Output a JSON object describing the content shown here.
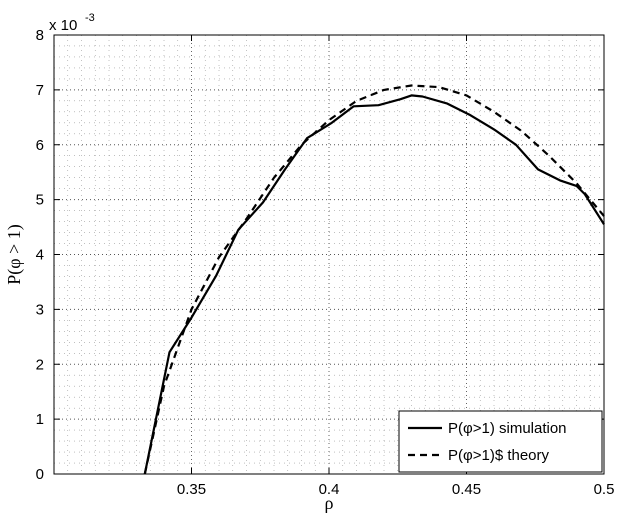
{
  "chart_data": {
    "type": "line",
    "title": "",
    "xlabel": "ρ",
    "ylabel": "P(φ > 1)",
    "y_exponent_label": "x 10",
    "y_exponent_power": "-3",
    "xlim": [
      0.3,
      0.5
    ],
    "ylim": [
      0,
      8
    ],
    "x_ticks": [
      0.35,
      0.4,
      0.45,
      0.5
    ],
    "x_tick_labels": [
      "0.35",
      "0.4",
      "0.45",
      "0.5"
    ],
    "y_ticks": [
      0,
      1,
      2,
      3,
      4,
      5,
      6,
      7,
      8
    ],
    "y_tick_labels": [
      "0",
      "1",
      "2",
      "3",
      "4",
      "5",
      "6",
      "7",
      "8"
    ],
    "grid": "dotted major and minor",
    "legend_position": "bottom-right",
    "series": [
      {
        "name": "P(φ>1) simulation",
        "style": "solid",
        "x": [
          0.333,
          0.342,
          0.35,
          0.359,
          0.367,
          0.376,
          0.384,
          0.392,
          0.401,
          0.409,
          0.418,
          0.426,
          0.43,
          0.434,
          0.443,
          0.451,
          0.46,
          0.468,
          0.476,
          0.484,
          0.49,
          0.493,
          0.5
        ],
        "y": [
          0.0,
          2.22,
          2.85,
          3.62,
          4.45,
          4.95,
          5.55,
          6.12,
          6.4,
          6.7,
          6.72,
          6.83,
          6.9,
          6.88,
          6.75,
          6.55,
          6.28,
          6.0,
          5.55,
          5.35,
          5.25,
          5.1,
          4.55
        ]
      },
      {
        "name": "P(φ>1)$ theory",
        "style": "dashed",
        "x": [
          0.333,
          0.34,
          0.35,
          0.36,
          0.37,
          0.38,
          0.39,
          0.4,
          0.41,
          0.42,
          0.43,
          0.44,
          0.45,
          0.46,
          0.47,
          0.48,
          0.49,
          0.5
        ],
        "y": [
          0.0,
          1.6,
          3.0,
          3.95,
          4.65,
          5.4,
          6.0,
          6.45,
          6.8,
          7.0,
          7.08,
          7.05,
          6.9,
          6.6,
          6.25,
          5.8,
          5.3,
          4.7
        ]
      }
    ]
  }
}
